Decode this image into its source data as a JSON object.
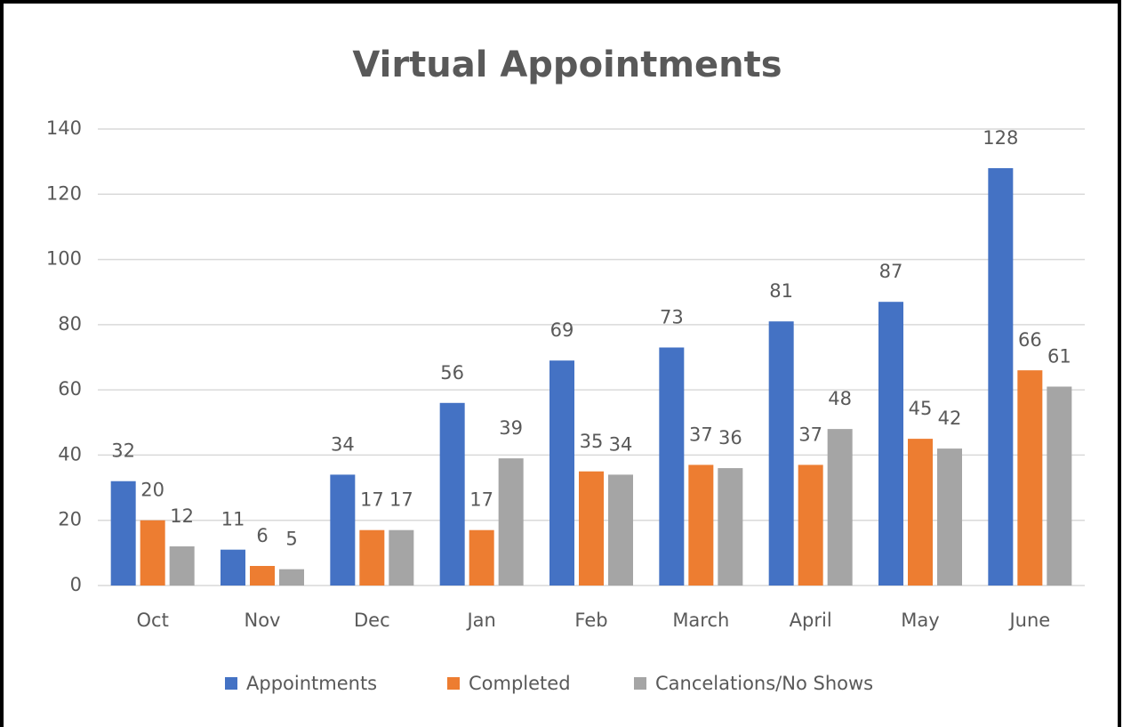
{
  "chart_data": {
    "type": "bar",
    "title": "Virtual Appointments",
    "categories": [
      "Oct",
      "Nov",
      "Dec",
      "Jan",
      "Feb",
      "March",
      "April",
      "May",
      "June"
    ],
    "series": [
      {
        "name": "Appointments",
        "color": "#4472c4",
        "values": [
          32,
          11,
          34,
          56,
          69,
          73,
          81,
          87,
          128
        ]
      },
      {
        "name": "Completed",
        "color": "#ed7d31",
        "values": [
          20,
          6,
          17,
          17,
          35,
          37,
          37,
          45,
          66
        ]
      },
      {
        "name": "Cancelations/No Shows",
        "color": "#a5a5a5",
        "values": [
          12,
          5,
          17,
          39,
          34,
          36,
          48,
          42,
          61
        ]
      }
    ],
    "ylim": [
      0,
      140
    ],
    "yticks": [
      0,
      20,
      40,
      60,
      80,
      100,
      120,
      140
    ],
    "grid": true,
    "legend": "bottom"
  }
}
